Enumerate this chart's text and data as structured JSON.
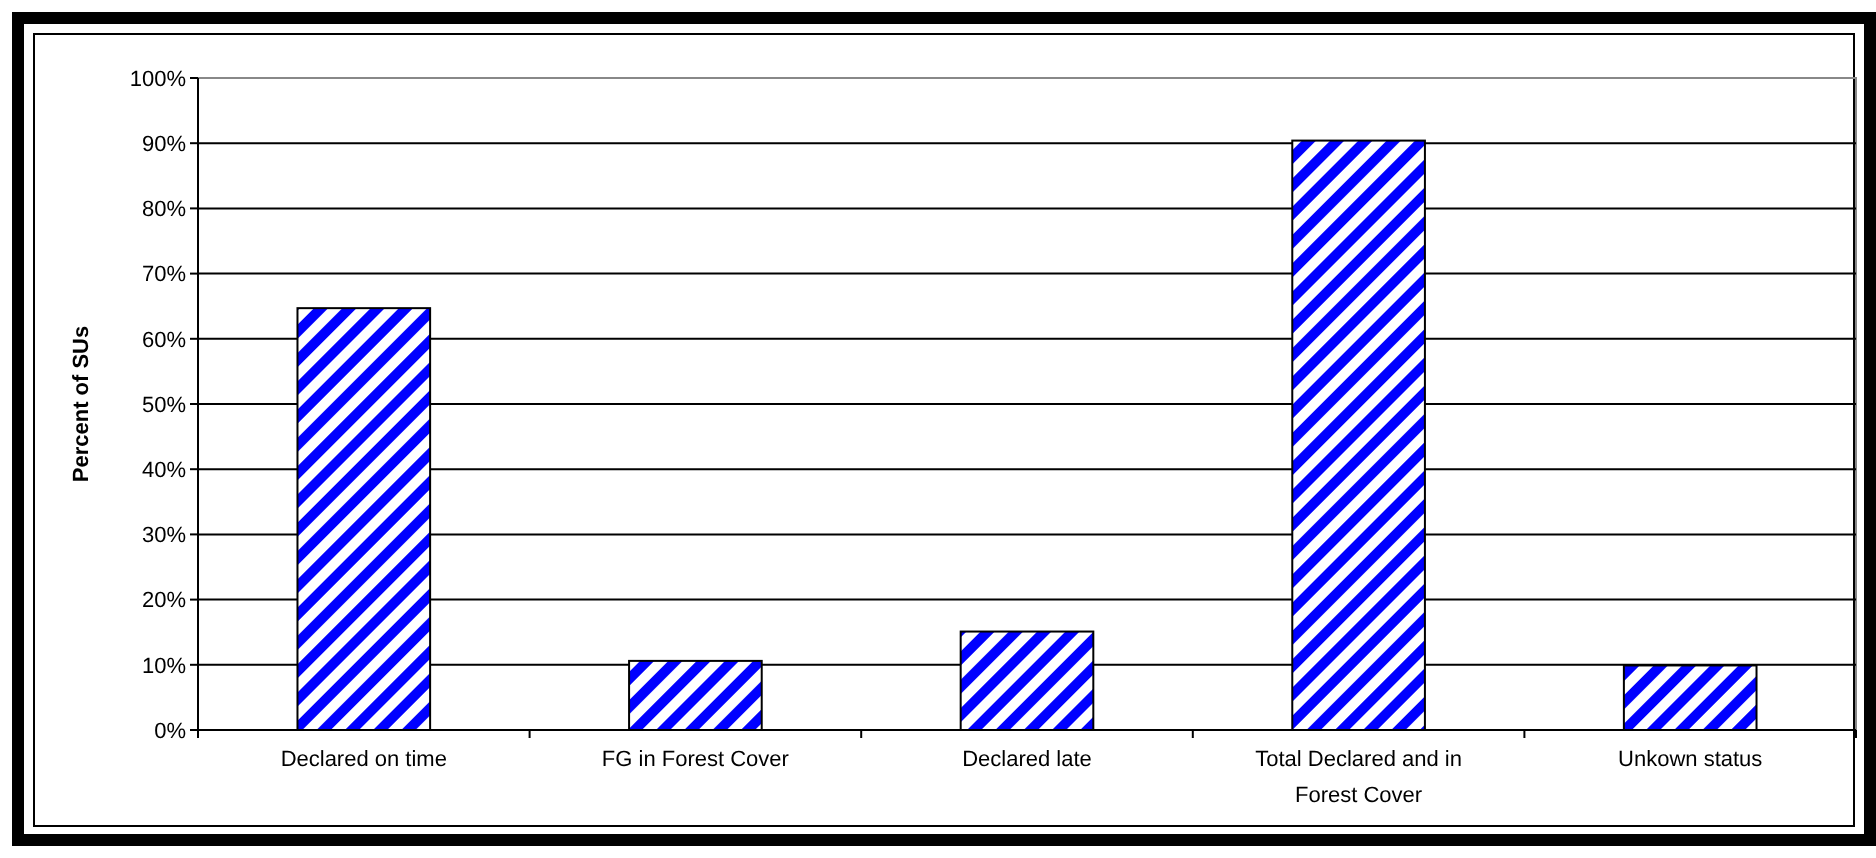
{
  "chart_data": {
    "type": "bar",
    "ylabel": "Percent of SUs",
    "categories": [
      "Declared on time",
      "FG in Forest Cover",
      "Declared late",
      "Total Declared and in Forest Cover",
      "Unkown status"
    ],
    "values": [
      64.7,
      10.6,
      15.1,
      90.4,
      9.9
    ],
    "color": "#0000ff",
    "ylim": [
      0,
      100
    ],
    "yticks": [
      {
        "value": 0,
        "label": "0%"
      },
      {
        "value": 10,
        "label": "10%"
      },
      {
        "value": 20,
        "label": "20%"
      },
      {
        "value": 30,
        "label": "30%"
      },
      {
        "value": 40,
        "label": "40%"
      },
      {
        "value": 50,
        "label": "50%"
      },
      {
        "value": 60,
        "label": "60%"
      },
      {
        "value": 70,
        "label": "70%"
      },
      {
        "value": 80,
        "label": "80%"
      },
      {
        "value": 90,
        "label": "90%"
      },
      {
        "value": 100,
        "label": "100%"
      }
    ],
    "grid": "y"
  }
}
